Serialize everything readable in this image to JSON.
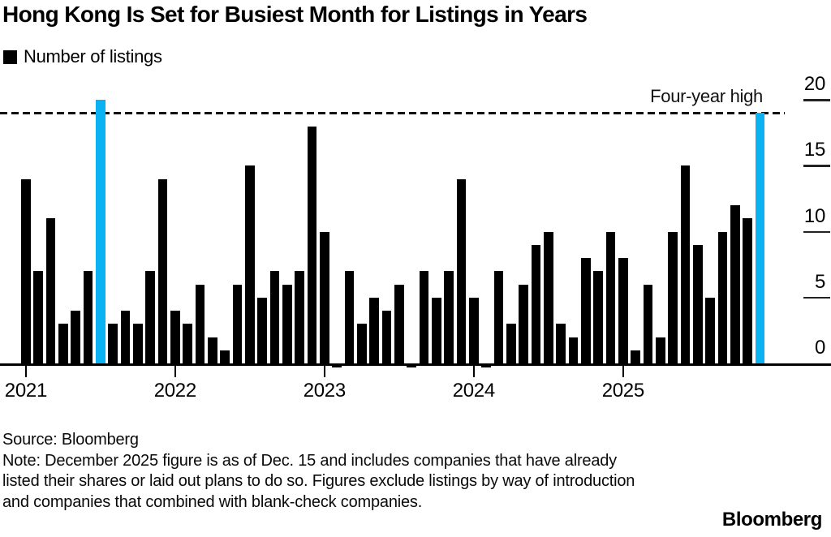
{
  "title": "Hong Kong Is Set for Busiest Month for Listings in Years",
  "legend": {
    "label": "Number of listings"
  },
  "annotation": {
    "label": "Four-year high"
  },
  "colors": {
    "bar": "#000000",
    "highlight": "#0bb2f2",
    "background": "#ffffff",
    "text": "#000000"
  },
  "footer": {
    "source": "Source: Bloomberg",
    "note": "Note: December 2025 figure is as of Dec. 15 and includes companies that have already listed their shares or laid out plans to do so. Figures exclude listings by way of introduction and companies that combined with blank-check companies.",
    "logo": "Bloomberg"
  },
  "chart_data": {
    "type": "bar",
    "title": "Hong Kong Is Set for Busiest Month for Listings in Years",
    "series_name": "Number of listings",
    "x_start": "2021-01",
    "x_freq": "monthly",
    "x": [
      "2021-01",
      "2021-02",
      "2021-03",
      "2021-04",
      "2021-05",
      "2021-06",
      "2021-07",
      "2021-08",
      "2021-09",
      "2021-10",
      "2021-11",
      "2021-12",
      "2022-01",
      "2022-02",
      "2022-03",
      "2022-04",
      "2022-05",
      "2022-06",
      "2022-07",
      "2022-08",
      "2022-09",
      "2022-10",
      "2022-11",
      "2022-12",
      "2023-01",
      "2023-02",
      "2023-03",
      "2023-04",
      "2023-05",
      "2023-06",
      "2023-07",
      "2023-08",
      "2023-09",
      "2023-10",
      "2023-11",
      "2023-12",
      "2024-01",
      "2024-02",
      "2024-03",
      "2024-04",
      "2024-05",
      "2024-06",
      "2024-07",
      "2024-08",
      "2024-09",
      "2024-10",
      "2024-11",
      "2024-12",
      "2025-01",
      "2025-02",
      "2025-03",
      "2025-04",
      "2025-05",
      "2025-06",
      "2025-07",
      "2025-08",
      "2025-09",
      "2025-10",
      "2025-11",
      "2025-12"
    ],
    "values": [
      14,
      7,
      11,
      3,
      4,
      7,
      20,
      3,
      4,
      3,
      7,
      14,
      4,
      3,
      6,
      2,
      1,
      6,
      15,
      5,
      7,
      6,
      7,
      18,
      10,
      0,
      7,
      3,
      5,
      4,
      6,
      0,
      7,
      5,
      7,
      14,
      5,
      0,
      7,
      3,
      6,
      9,
      10,
      3,
      2,
      8,
      7,
      10,
      8,
      1,
      6,
      2,
      10,
      15,
      9,
      5,
      10,
      12,
      11,
      19
    ],
    "highlighted_indices": [
      6,
      59
    ],
    "highlighted_months": [
      "2021-07",
      "2025-12"
    ],
    "annotation_line": {
      "label": "Four-year high",
      "value": 19
    },
    "ylim": [
      0,
      20
    ],
    "y_ticks": [
      20,
      15,
      10,
      5,
      0
    ],
    "x_year_labels": [
      "2021",
      "2022",
      "2023",
      "2024",
      "2025"
    ],
    "legend_position": "top-left",
    "grid": false
  }
}
